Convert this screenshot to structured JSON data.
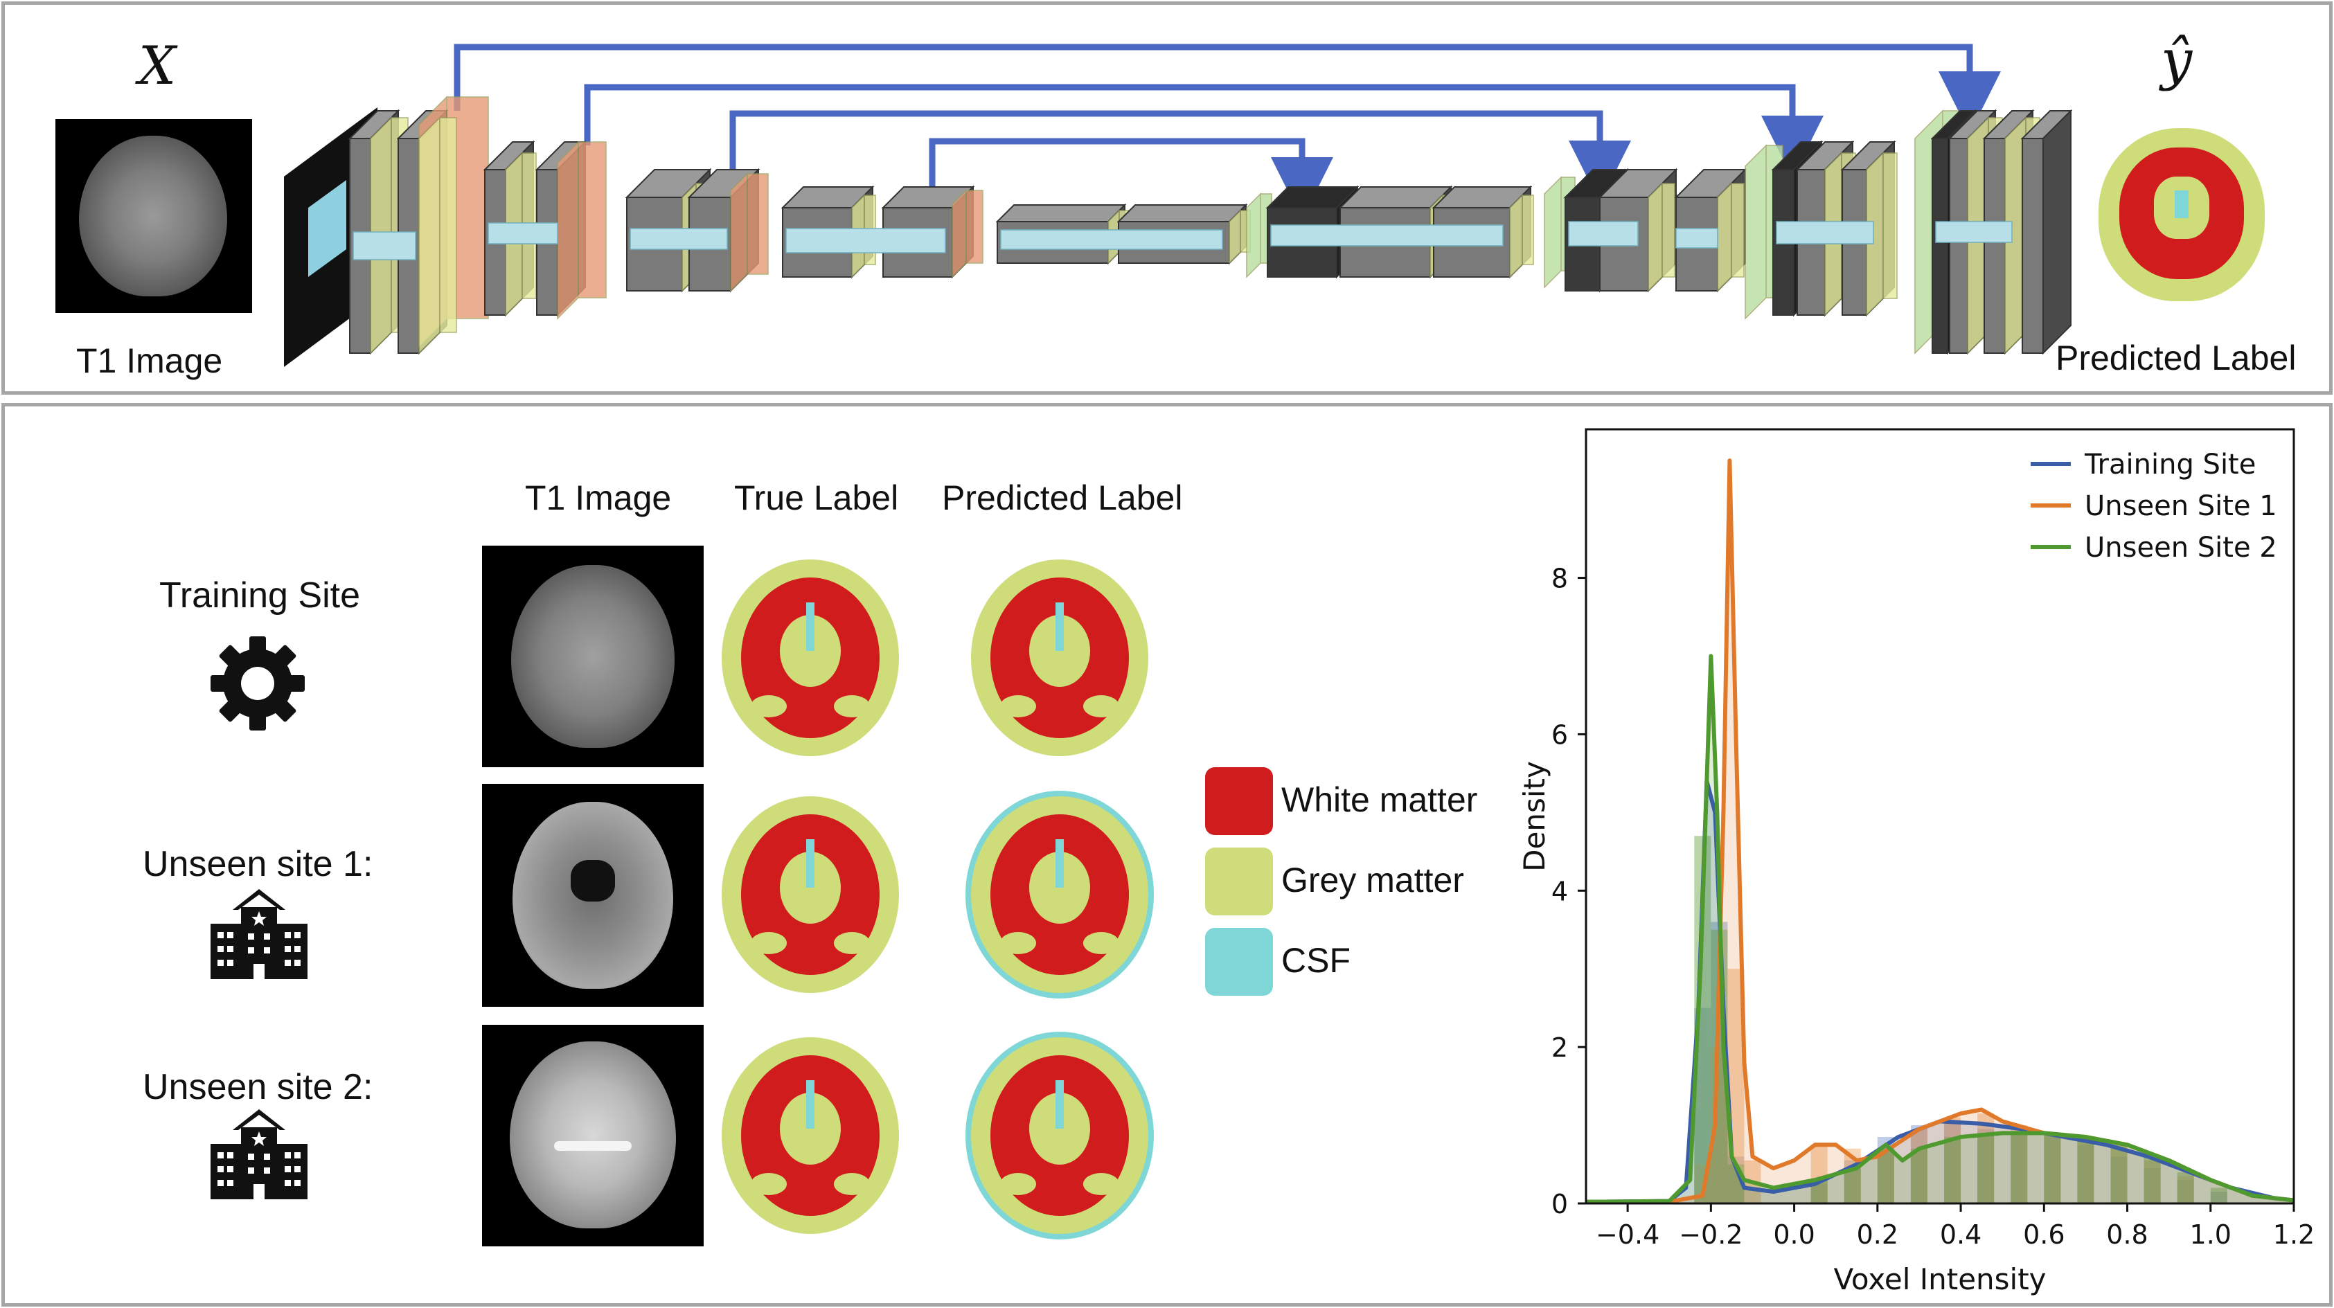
{
  "top": {
    "input_symbol": "X",
    "output_symbol": "ŷ",
    "input_caption": "T1 Image",
    "output_caption": "Predicted Label"
  },
  "bottom": {
    "column_headers": [
      "T1 Image",
      "True Label",
      "Predicted Label"
    ],
    "rows": [
      {
        "label": "Training Site",
        "icon": "gear-icon"
      },
      {
        "label": "Unseen site 1:",
        "icon": "hospital-icon"
      },
      {
        "label": "Unseen site 2:",
        "icon": "hospital-icon"
      }
    ],
    "legend": [
      {
        "label": "White matter",
        "color": "#d01c1c"
      },
      {
        "label": "Grey matter",
        "color": "#cfdc7a"
      },
      {
        "label": "CSF",
        "color": "#7fd6d6"
      }
    ]
  },
  "colors": {
    "skip_connection": "#4a67c4",
    "block_grey": "#6e6e6e",
    "block_light": "#b7dfe7",
    "layer_yellow": "#e6ec9c",
    "layer_orange": "#e79a75",
    "layer_green": "#b9dea0"
  },
  "chart_data": {
    "type": "line",
    "xlabel": "Voxel Intensity",
    "ylabel": "Density",
    "xlim": [
      -0.5,
      1.2
    ],
    "ylim": [
      0,
      9.9
    ],
    "xticks": [
      -0.4,
      -0.2,
      0.0,
      0.2,
      0.4,
      0.6,
      0.8,
      1.0,
      1.2
    ],
    "xtick_labels": [
      "−0.4",
      "−0.2",
      "0.0",
      "0.2",
      "0.4",
      "0.6",
      "0.8",
      "1.0",
      "1.2"
    ],
    "yticks": [
      0,
      2,
      4,
      6,
      8
    ],
    "legend_position": "top-right",
    "series": [
      {
        "name": "Training Site",
        "color": "#3a5da8",
        "x": [
          -0.5,
          -0.3,
          -0.26,
          -0.23,
          -0.21,
          -0.19,
          -0.17,
          -0.15,
          -0.12,
          -0.05,
          0.05,
          0.15,
          0.25,
          0.35,
          0.45,
          0.55,
          0.65,
          0.75,
          0.85,
          0.95,
          1.05,
          1.15,
          1.2
        ],
        "y": [
          0.02,
          0.03,
          0.2,
          2.5,
          5.4,
          5.0,
          2.5,
          0.6,
          0.2,
          0.15,
          0.25,
          0.5,
          0.85,
          1.05,
          1.02,
          0.95,
          0.85,
          0.75,
          0.6,
          0.4,
          0.2,
          0.07,
          0.04
        ]
      },
      {
        "name": "Unseen Site 1",
        "color": "#e07a2a",
        "x": [
          -0.5,
          -0.3,
          -0.22,
          -0.19,
          -0.17,
          -0.155,
          -0.14,
          -0.12,
          -0.1,
          -0.05,
          0.0,
          0.05,
          0.1,
          0.15,
          0.2,
          0.3,
          0.4,
          0.45,
          0.5,
          0.6,
          0.7,
          0.8,
          0.9,
          1.0,
          1.1,
          1.2
        ],
        "y": [
          0.02,
          0.02,
          0.1,
          1.0,
          5.0,
          9.5,
          6.0,
          1.8,
          0.6,
          0.45,
          0.55,
          0.75,
          0.75,
          0.55,
          0.6,
          0.95,
          1.15,
          1.2,
          1.05,
          0.9,
          0.85,
          0.75,
          0.55,
          0.3,
          0.1,
          0.04
        ]
      },
      {
        "name": "Unseen Site 2",
        "color": "#4f9a2f",
        "x": [
          -0.5,
          -0.3,
          -0.25,
          -0.225,
          -0.2,
          -0.185,
          -0.17,
          -0.15,
          -0.12,
          -0.05,
          0.05,
          0.15,
          0.22,
          0.26,
          0.3,
          0.4,
          0.5,
          0.6,
          0.7,
          0.8,
          0.9,
          1.0,
          1.1,
          1.2
        ],
        "y": [
          0.02,
          0.03,
          0.3,
          3.0,
          7.0,
          5.0,
          2.0,
          0.6,
          0.3,
          0.2,
          0.3,
          0.45,
          0.75,
          0.55,
          0.7,
          0.85,
          0.9,
          0.9,
          0.85,
          0.75,
          0.55,
          0.3,
          0.1,
          0.04
        ]
      }
    ],
    "histograms": [
      {
        "name": "Training Site",
        "color": "#8aa4d6",
        "bin_starts": [
          -0.24,
          -0.2,
          -0.16,
          0.04,
          0.12,
          0.2,
          0.28,
          0.36,
          0.44,
          0.52,
          0.6,
          0.68,
          0.76,
          0.84,
          0.92,
          1.0
        ],
        "heights": [
          2.5,
          3.6,
          0.6,
          0.25,
          0.55,
          0.85,
          1.0,
          1.05,
          0.95,
          0.9,
          0.85,
          0.75,
          0.6,
          0.45,
          0.3,
          0.15
        ]
      },
      {
        "name": "Unseen Site 1",
        "color": "#f0b27a",
        "bin_starts": [
          -0.24,
          -0.2,
          -0.16,
          -0.12,
          0.04,
          0.12,
          0.2,
          0.28,
          0.36,
          0.44,
          0.52,
          0.6,
          0.68,
          0.76,
          0.84,
          0.92
        ],
        "heights": [
          0.5,
          2.0,
          3.0,
          0.55,
          0.75,
          0.7,
          0.65,
          0.95,
          1.1,
          1.15,
          1.0,
          0.9,
          0.85,
          0.75,
          0.55,
          0.35
        ]
      },
      {
        "name": "Unseen Site 2",
        "color": "#7fb25e",
        "bin_starts": [
          -0.24,
          -0.2,
          -0.16,
          0.04,
          0.12,
          0.2,
          0.28,
          0.36,
          0.44,
          0.52,
          0.6,
          0.68,
          0.76,
          0.84,
          0.92,
          1.0
        ],
        "heights": [
          4.7,
          3.5,
          0.5,
          0.3,
          0.45,
          0.7,
          0.7,
          0.85,
          0.9,
          0.9,
          0.9,
          0.85,
          0.75,
          0.6,
          0.4,
          0.2
        ]
      }
    ]
  }
}
